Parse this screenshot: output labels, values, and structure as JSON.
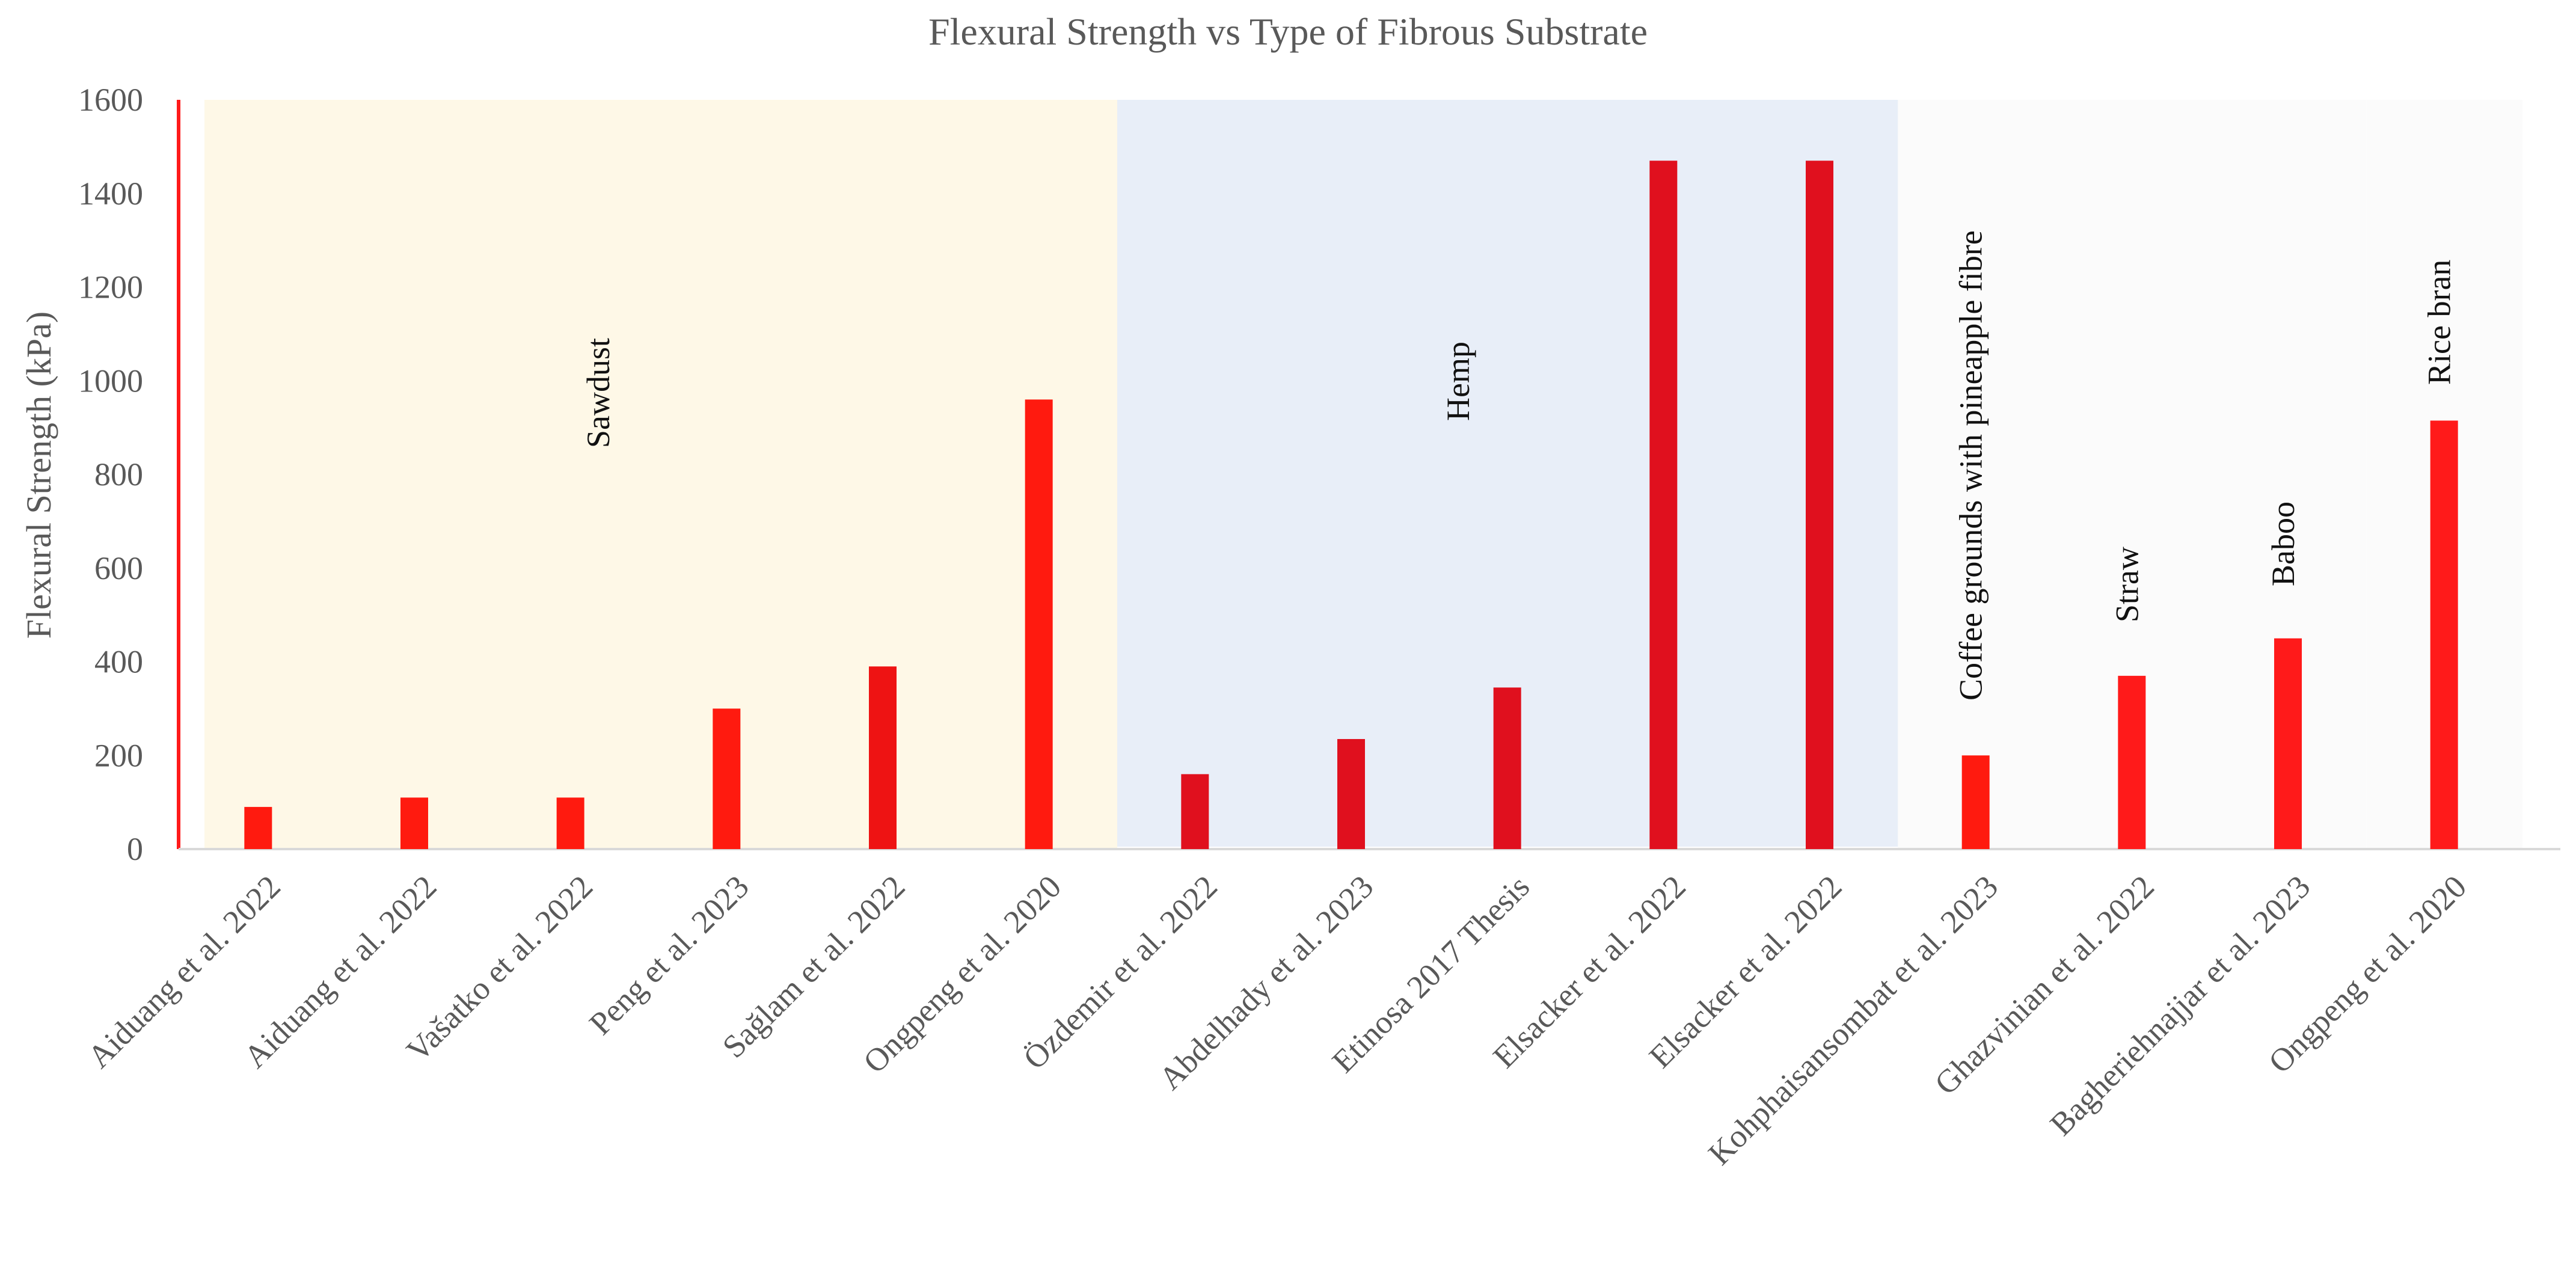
{
  "chart_data": {
    "type": "bar",
    "title": "Flexural  Strength vs Type of Fibrous Substrate",
    "xlabel": "",
    "ylabel": "Flexural  Strength (kPa)",
    "ylim": [
      0,
      1600
    ],
    "yticks": [
      0,
      200,
      400,
      600,
      800,
      1000,
      1200,
      1400,
      1600
    ],
    "grid": false,
    "legend": "none",
    "categories": [
      "Aiduang et al. 2022",
      "Aiduang et al. 2022",
      "Vašatko et al. 2022",
      "Peng et al. 2023",
      "Sağlam et al. 2022",
      "Ongpeng  et al. 2020",
      "Özdemir et al. 2022",
      "Abdelhady et al. 2023",
      "Etinosa 2017 Thesis",
      "Elsacker et al. 2022",
      "Elsacker et al. 2022",
      "Kohphaisansombat et al. 2023",
      "Ghazvinian et al. 2022",
      "Bagheriehnajjar et al. 2023",
      "Ongpeng  et al. 2020"
    ],
    "values": [
      90,
      110,
      110,
      300,
      390,
      960,
      160,
      235,
      345,
      1470,
      1470,
      200,
      370,
      450,
      915
    ],
    "bar_colors": [
      "#ff1a0f",
      "#ff1a0f",
      "#ff1a0f",
      "#ff1a0f",
      "#ee1313",
      "#ff1a0f",
      "#e0101e",
      "#e0101e",
      "#e0101e",
      "#e0101e",
      "#e0101e",
      "#ff1a0f",
      "#ff1a1a",
      "#ff1a1a",
      "#ff1a1a"
    ],
    "groups": [
      {
        "label": "Sawdust",
        "start": 0,
        "end": 5,
        "color": "#fef8e7"
      },
      {
        "label": "Hemp",
        "start": 6,
        "end": 10,
        "color": "#e8eef8"
      },
      {
        "label": "Coffee grounds with pineapple fibre",
        "start": 11,
        "end": 11,
        "color": "#fbfbfb"
      },
      {
        "label": "Straw",
        "start": 12,
        "end": 12,
        "color": "#fbfbfb"
      },
      {
        "label": "Baboo",
        "start": 13,
        "end": 13,
        "color": "#fbfbfb"
      },
      {
        "label": "Rice bran",
        "start": 14,
        "end": 14,
        "color": "#fbfbfb"
      }
    ],
    "axis_color": "#ff1a1a"
  }
}
